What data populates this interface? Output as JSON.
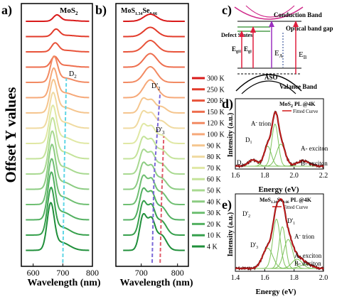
{
  "chart_data": [
    {
      "panel": "a)",
      "type": "line",
      "inset_label": "MoS",
      "inset_label_sub": "2",
      "ylabel": "Offset Y values",
      "xlabel": "Wavelength (nm)",
      "xlim": [
        560,
        800
      ],
      "xticks": [
        600,
        700,
        800
      ],
      "peak_annotation": "D",
      "peak_annotation_sub": "2",
      "series": [
        {
          "name": "300 K",
          "peak_nm": 680,
          "relative_height": 0.3
        },
        {
          "name": "250 K",
          "peak_nm": 677,
          "relative_height": 0.35
        },
        {
          "name": "200 K",
          "peak_nm": 674,
          "relative_height": 0.42
        },
        {
          "name": "150 K",
          "peak_nm": 672,
          "relative_height": 0.5
        },
        {
          "name": "120 K",
          "peak_nm": 670,
          "relative_height": 0.55
        },
        {
          "name": "100 K",
          "peak_nm": 669,
          "relative_height": 0.62
        },
        {
          "name": "90 K",
          "peak_nm": 668,
          "relative_height": 0.7
        },
        {
          "name": "80 K",
          "peak_nm": 667,
          "relative_height": 0.75
        },
        {
          "name": "70 K",
          "peak_nm": 666,
          "relative_height": 0.8
        },
        {
          "name": "60 K",
          "peak_nm": 665,
          "relative_height": 0.86
        },
        {
          "name": "50 K",
          "peak_nm": 664,
          "relative_height": 0.9
        },
        {
          "name": "40 K",
          "peak_nm": 663,
          "relative_height": 0.94
        },
        {
          "name": "30 K",
          "peak_nm": 662,
          "relative_height": 0.96
        },
        {
          "name": "20 K",
          "peak_nm": 661,
          "relative_height": 1.0
        },
        {
          "name": "10 K",
          "peak_nm": 660,
          "relative_height": 1.0
        },
        {
          "name": "4 K",
          "peak_nm": 659,
          "relative_height": 1.0
        }
      ]
    },
    {
      "panel": "b)",
      "type": "line",
      "inset_label": "MoS",
      "inset_label_sub1": "1.34",
      "inset_label_mid": "Se",
      "inset_label_sub2": "0.66",
      "xlabel": "Wavelength (nm)",
      "xlim": [
        630,
        830
      ],
      "xticks": [
        700,
        800
      ],
      "peak_annotations": [
        {
          "text": "D'",
          "sub": "2"
        },
        {
          "text": "D'",
          "sub": "3"
        }
      ],
      "series_names": [
        "300 K",
        "250 K",
        "200 K",
        "150 K",
        "120 K",
        "100 K",
        "90 K",
        "80 K",
        "70 K",
        "60 K",
        "50 K",
        "40 K",
        "30 K",
        "20 K",
        "10 K",
        "4 K"
      ],
      "main_peak_nm": 720
    },
    {
      "panel": "c)",
      "type": "diagram",
      "labels": [
        "Conduction Band",
        "Defect States",
        "Optical band gap",
        "Valance Band",
        "ASO"
      ],
      "energy_labels": [
        {
          "text": "E",
          "sub": "g",
          "sub2": "II"
        },
        {
          "text": "E",
          "sub": "g",
          "sub2": "I"
        },
        {
          "text": "E",
          "sub": "A"
        },
        {
          "text": "E",
          "sub": "B"
        }
      ]
    },
    {
      "panel": "d)",
      "type": "line",
      "title": "MoS",
      "title_sub": "2",
      "title_tail": " PL @4K",
      "legend": "Fitted Curve",
      "xlabel": "Energy (eV)",
      "ylabel": "Intensity (a.u.)",
      "xlim": [
        1.6,
        2.2
      ],
      "xticks": [
        1.6,
        1.8,
        2.0,
        2.2
      ],
      "annotations": [
        {
          "text": "A",
          "sup": "-",
          "tail": " trion"
        },
        {
          "text": "D",
          "sub": "1"
        },
        {
          "text": "A- exciton"
        },
        {
          "text": "D",
          "sub": "2"
        },
        {
          "text": "B- exciton"
        }
      ],
      "components": [
        {
          "name": "D2",
          "center_ev": 1.72,
          "amplitude": 0.12
        },
        {
          "name": "D1",
          "center_ev": 1.82,
          "amplitude": 0.38
        },
        {
          "name": "A- trion",
          "center_ev": 1.87,
          "amplitude": 0.8
        },
        {
          "name": "A- exciton",
          "center_ev": 1.91,
          "amplitude": 0.42
        },
        {
          "name": "B- exciton",
          "center_ev": 2.06,
          "amplitude": 0.1
        }
      ]
    },
    {
      "panel": "e)",
      "type": "line",
      "title": "MoS",
      "title_sub1": "1.34",
      "title_mid": "Se",
      "title_sub2": "0.66",
      "title_tail": " PL @4K",
      "legend": "Fitted Curve",
      "xlabel": "Energy (eV)",
      "ylabel": "Intensity (a.u.)",
      "xlim": [
        1.4,
        2.0
      ],
      "xticks": [
        1.4,
        1.6,
        1.8,
        2.0
      ],
      "annotations": [
        {
          "text": "D'",
          "sub": "2"
        },
        {
          "text": "D'",
          "sub": "1"
        },
        {
          "text": "A",
          "sup": "-",
          "tail": " trion"
        },
        {
          "text": "D'",
          "sub": "3"
        },
        {
          "text": "A- exciton"
        },
        {
          "text": "B- exciton"
        }
      ],
      "components": [
        {
          "name": "D'3",
          "center_ev": 1.62,
          "amplitude": 0.35
        },
        {
          "name": "D'2",
          "center_ev": 1.68,
          "amplitude": 0.85
        },
        {
          "name": "D'1",
          "center_ev": 1.72,
          "amplitude": 0.72
        },
        {
          "name": "A- trion",
          "center_ev": 1.76,
          "amplitude": 0.5
        },
        {
          "name": "A- exciton",
          "center_ev": 1.82,
          "amplitude": 0.16
        },
        {
          "name": "B- exciton",
          "center_ev": 1.88,
          "amplitude": 0.07
        }
      ]
    }
  ],
  "colors": {
    "series": [
      "#d91a1a",
      "#e23a2a",
      "#e8533a",
      "#ee6e4e",
      "#f28a62",
      "#f6a878",
      "#f5c58e",
      "#f0daa0",
      "#e0e8a4",
      "#c4e39a",
      "#a8d990",
      "#8ccc82",
      "#6fbf72",
      "#52b060",
      "#36a04c",
      "#1f8f3a"
    ],
    "dashed_cyan": "#5fd6e6",
    "dashed_purple": "#7b68d8",
    "dashed_red": "#e05a6a",
    "fit_red": "#d01818",
    "fit_data": "#6b1a1a",
    "fit_comp": "#7cc25a",
    "conduction": "#d02a8a",
    "arrow_red": "#e01d3d",
    "arrow_purple": "#9b30c0",
    "defect_green": "#2a8a2a",
    "optical_blue": "#1e3d8c"
  }
}
